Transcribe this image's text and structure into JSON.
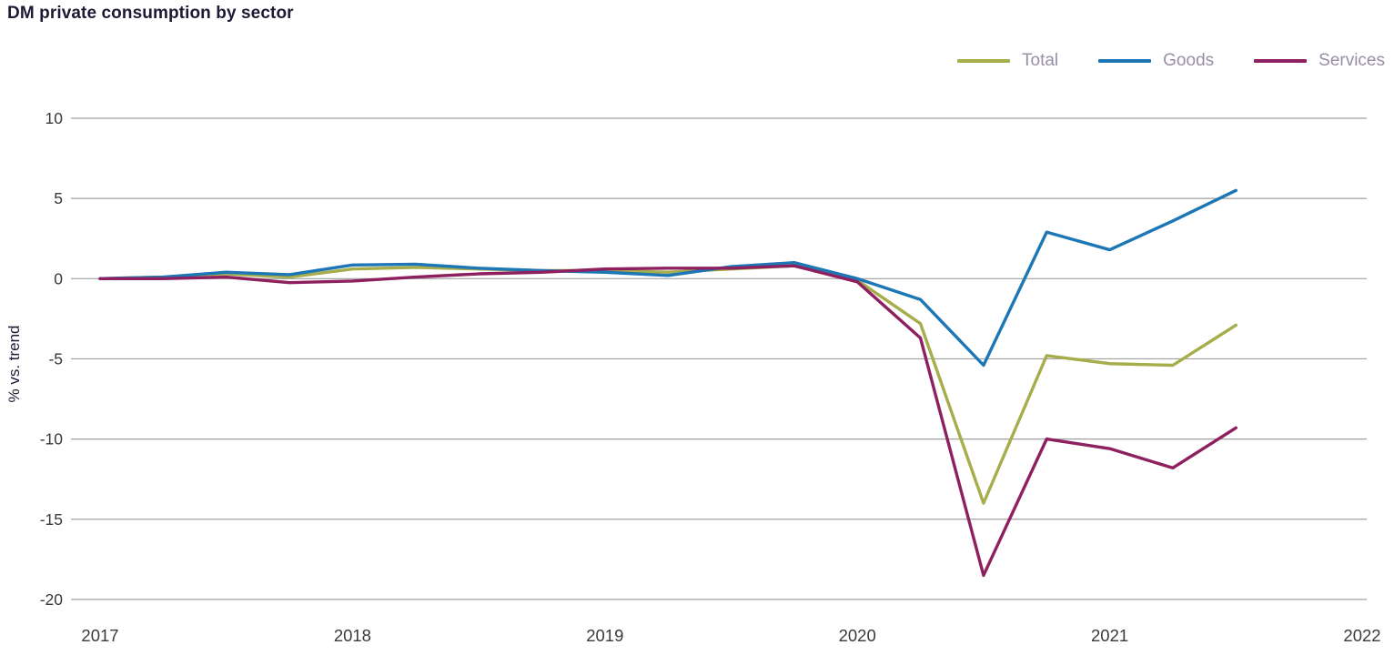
{
  "title": "DM private consumption by sector",
  "colors": {
    "background": "#ffffff",
    "grid": "#a0a0a0",
    "tick_text": "#3a3a3a",
    "title_text": "#1e1a34",
    "legend_text": "#988fa5",
    "total": "#a6ad4b",
    "goods": "#1d76b5",
    "services": "#8e2060"
  },
  "chart_data": {
    "type": "line",
    "title": "DM private consumption by sector",
    "xlabel": "",
    "ylabel": "% vs. trend",
    "grid": true,
    "legend_position": "top-right",
    "xlim": [
      2017,
      2022
    ],
    "ylim": [
      -20,
      10
    ],
    "ytick_values": [
      10,
      5,
      0,
      -5,
      -10,
      -15,
      -20
    ],
    "ytick_labels": [
      "10",
      "5",
      "0",
      "-5",
      "-10",
      "-15",
      "-20"
    ],
    "xtick_values": [
      2017,
      2018,
      2019,
      2020,
      2021,
      2022
    ],
    "xtick_labels": [
      "2017",
      "2018",
      "2019",
      "2020",
      "2021",
      "2022"
    ],
    "x": [
      2017.0,
      2017.25,
      2017.5,
      2017.75,
      2018.0,
      2018.25,
      2018.5,
      2018.75,
      2019.0,
      2019.25,
      2019.5,
      2019.75,
      2020.0,
      2020.25,
      2020.5,
      2020.75,
      2021.0,
      2021.25,
      2021.5
    ],
    "series": [
      {
        "name": "Total",
        "color": "#a6ad4b",
        "values": [
          0.0,
          0.1,
          0.3,
          0.1,
          0.6,
          0.7,
          0.6,
          0.5,
          0.5,
          0.4,
          0.6,
          0.8,
          -0.1,
          -2.8,
          -14.0,
          -4.8,
          -5.3,
          -5.4,
          -2.9
        ]
      },
      {
        "name": "Goods",
        "color": "#1d76b5",
        "values": [
          0.0,
          0.1,
          0.4,
          0.25,
          0.85,
          0.9,
          0.65,
          0.5,
          0.4,
          0.2,
          0.75,
          1.0,
          0.0,
          -1.3,
          -5.4,
          2.9,
          1.8,
          3.6,
          5.5
        ]
      },
      {
        "name": "Services",
        "color": "#8e2060",
        "values": [
          0.0,
          0.0,
          0.1,
          -0.25,
          -0.15,
          0.1,
          0.3,
          0.4,
          0.6,
          0.65,
          0.65,
          0.8,
          -0.2,
          -3.7,
          -18.5,
          -10.0,
          -10.6,
          -11.8,
          -9.3
        ]
      }
    ]
  }
}
